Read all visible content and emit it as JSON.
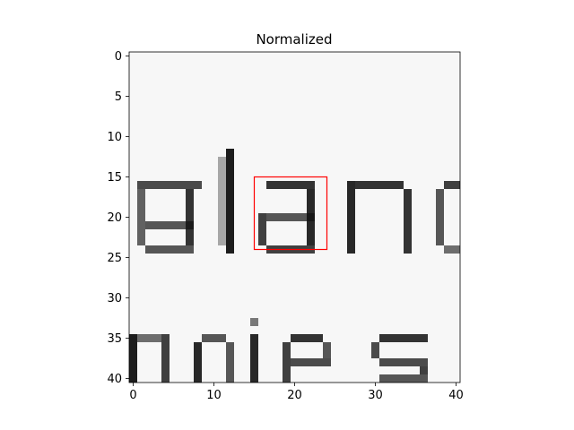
{
  "chart_data": {
    "type": "heatmap",
    "title": "Normalized",
    "xlabel": "",
    "ylabel": "",
    "colormap": "gray",
    "xlim": [
      -0.5,
      40.5
    ],
    "ylim": [
      40.5,
      -0.5
    ],
    "x_ticks": [
      0,
      10,
      20,
      30,
      40
    ],
    "y_ticks": [
      0,
      5,
      10,
      15,
      20,
      25,
      30,
      35,
      40
    ],
    "image_content": {
      "visible_text_fragments": [
        "alanc",
        "nies"
      ],
      "note_values": "grayscale pixel intensities of scanned text; dark pixels form letter strokes"
    },
    "annotations": [
      {
        "shape": "rectangle",
        "color": "#ff0000",
        "x": 15,
        "y": 15,
        "width": 9,
        "height": 9
      }
    ]
  },
  "colors": {
    "background": "#f7f7f7",
    "ink": "#111111",
    "highlight": "#ff0000"
  }
}
